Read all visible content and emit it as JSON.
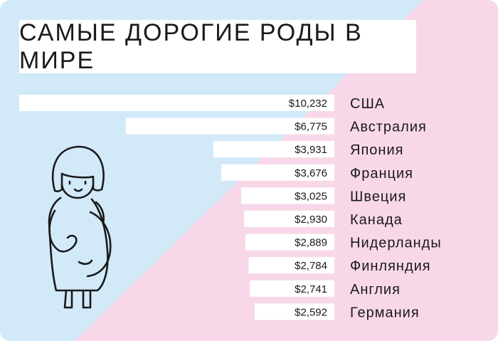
{
  "title": "САМЫЕ ДОРОГИЕ РОДЫ В МИРЕ",
  "colors": {
    "bg_blue": "#d2e9f8",
    "bg_pink": "#f8d8e8",
    "bar": "#ffffff",
    "text": "#1a1a1a"
  },
  "icons": [
    "pregnant-woman-icon"
  ],
  "chart_data": {
    "type": "bar",
    "orientation": "horizontal",
    "categories": [
      "США",
      "Австралия",
      "Япония",
      "Франция",
      "Швеция",
      "Канада",
      "Нидерланды",
      "Финляндия",
      "Англия",
      "Германия"
    ],
    "values": [
      10232,
      6775,
      3931,
      3676,
      3025,
      2930,
      2889,
      2784,
      2741,
      2592
    ],
    "value_labels": [
      "$10,232",
      "$6,775",
      "$3,931",
      "$3,676",
      "$3,025",
      "$2,930",
      "$2,889",
      "$2,784",
      "$2,741",
      "$2,592"
    ],
    "title": "САМЫЕ ДОРОГИЕ РОДЫ В МИРЕ",
    "grid": false,
    "legend": "none"
  }
}
